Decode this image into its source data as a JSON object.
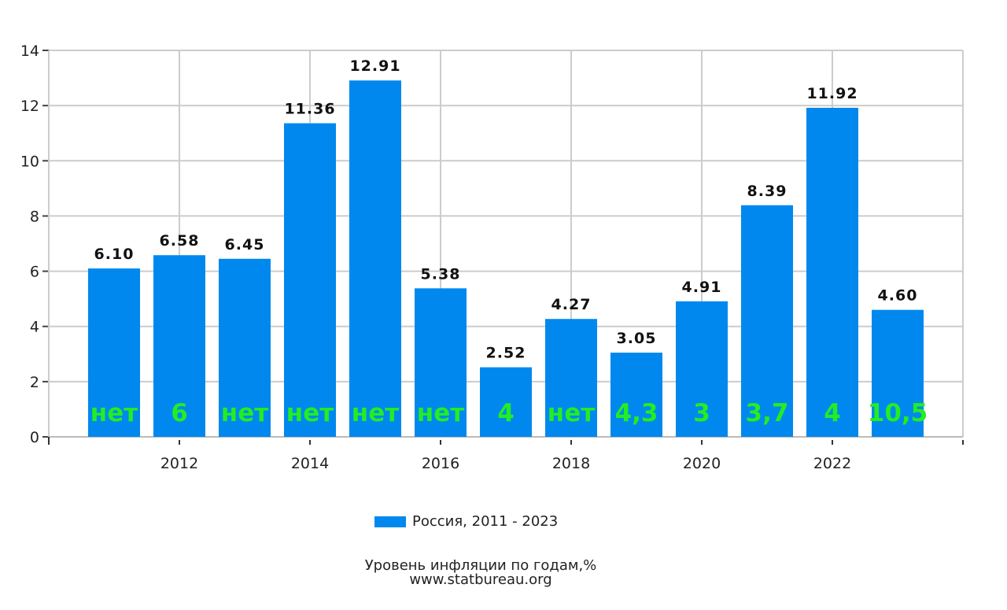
{
  "chart_data": {
    "type": "bar",
    "categories": [
      "2011",
      "2012",
      "2013",
      "2014",
      "2015",
      "2016",
      "2017",
      "2018",
      "2019",
      "2020",
      "2021",
      "2022",
      "2023"
    ],
    "values": [
      6.1,
      6.58,
      6.45,
      11.36,
      12.91,
      5.38,
      2.52,
      4.27,
      3.05,
      4.91,
      8.39,
      11.92,
      4.6
    ],
    "value_labels": [
      "6.10",
      "6.58",
      "6.45",
      "11.36",
      "12.91",
      "5.38",
      "2.52",
      "4.27",
      "3.05",
      "4.91",
      "8.39",
      "11.92",
      "4.60"
    ],
    "annotations": [
      "нет",
      "6",
      "нет",
      "нет",
      "нет",
      "нет",
      "4",
      "нет",
      "4,3",
      "3",
      "3,7",
      "4",
      "10,5"
    ],
    "annotation_color": "#22ee22",
    "bar_color": "#0088ee",
    "series": [
      {
        "name": "Россия, 2011 - 2023"
      }
    ],
    "ylim": [
      0,
      14
    ],
    "yticks": [
      "0",
      "2",
      "4",
      "6",
      "8",
      "10",
      "12",
      "14"
    ],
    "xticks": [
      "2012",
      "2014",
      "2016",
      "2018",
      "2020",
      "2022"
    ],
    "grid": true,
    "legend": "bottom-center",
    "caption": "Уровень инфляции по годам,%",
    "source": "www.statbureau.org"
  }
}
